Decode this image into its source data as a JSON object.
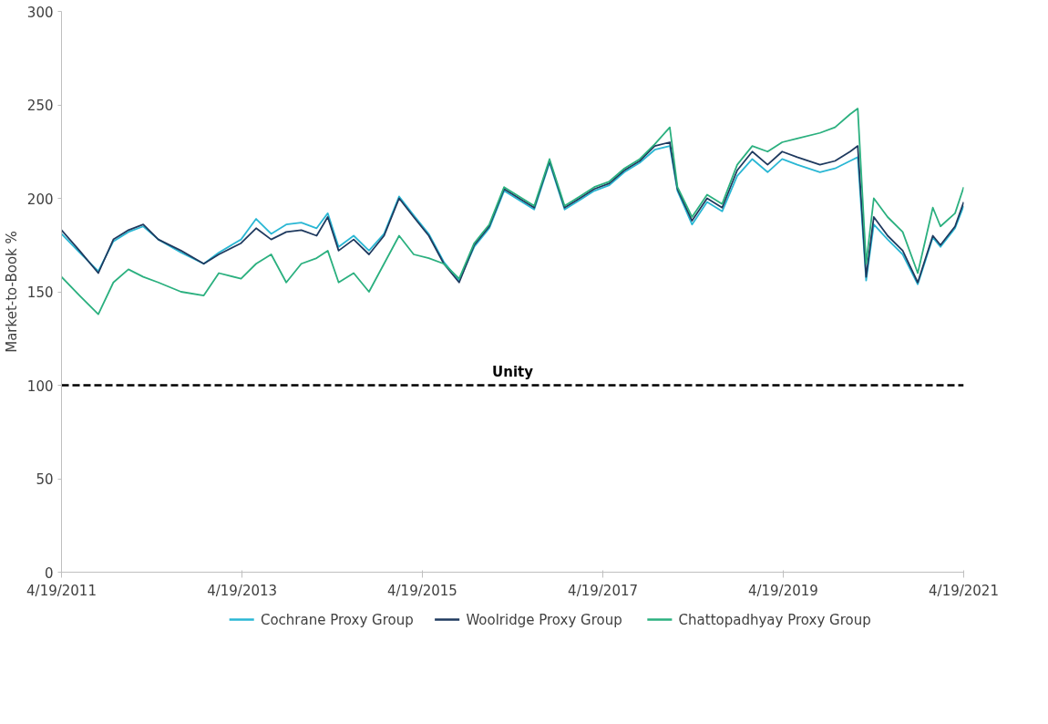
{
  "chart_data": {
    "type": "line",
    "ylabel": "Market-to-Book %",
    "x": [
      "2011-04-19",
      "2011-07-01",
      "2011-09-15",
      "2011-11-15",
      "2012-01-15",
      "2012-03-15",
      "2012-05-15",
      "2012-08-15",
      "2012-11-15",
      "2013-01-15",
      "2013-04-15",
      "2013-06-15",
      "2013-08-15",
      "2013-10-15",
      "2013-12-15",
      "2014-02-15",
      "2014-04-01",
      "2014-05-15",
      "2014-07-15",
      "2014-09-15",
      "2014-11-15",
      "2015-01-15",
      "2015-03-15",
      "2015-05-15",
      "2015-07-15",
      "2015-09-15",
      "2015-11-15",
      "2016-01-15",
      "2016-03-15",
      "2016-05-15",
      "2016-07-15",
      "2016-09-15",
      "2016-11-15",
      "2017-01-15",
      "2017-03-15",
      "2017-05-15",
      "2017-07-15",
      "2017-09-15",
      "2017-11-15",
      "2018-01-15",
      "2018-02-15",
      "2018-04-15",
      "2018-06-15",
      "2018-08-15",
      "2018-10-15",
      "2018-12-15",
      "2019-02-15",
      "2019-04-15",
      "2019-06-15",
      "2019-09-15",
      "2019-11-15",
      "2020-01-15",
      "2020-02-15",
      "2020-03-20",
      "2020-04-20",
      "2020-06-15",
      "2020-08-15",
      "2020-10-15",
      "2020-12-15",
      "2021-01-15",
      "2021-03-15",
      "2021-04-19"
    ],
    "series": [
      {
        "name": "Cochrane Proxy Group",
        "color": "#2ab7d4",
        "values": [
          181,
          171,
          161,
          177,
          182,
          185,
          178,
          171,
          165,
          171,
          178,
          189,
          181,
          186,
          187,
          184,
          192,
          174,
          180,
          172,
          181,
          201,
          191,
          181,
          166,
          156,
          174,
          184,
          204,
          199,
          194,
          219,
          194,
          199,
          204,
          207,
          214,
          219,
          226,
          228,
          204,
          186,
          198,
          193,
          212,
          221,
          214,
          221,
          218,
          214,
          216,
          220,
          222,
          156,
          186,
          178,
          170,
          154,
          179,
          174,
          184,
          196
        ]
      },
      {
        "name": "Woolridge Proxy Group",
        "color": "#1f3a5f",
        "values": [
          183,
          172,
          160,
          178,
          183,
          186,
          178,
          172,
          165,
          170,
          176,
          184,
          178,
          182,
          183,
          180,
          190,
          172,
          178,
          170,
          180,
          200,
          190,
          180,
          165,
          155,
          175,
          185,
          205,
          200,
          195,
          220,
          195,
          200,
          205,
          208,
          215,
          220,
          228,
          230,
          205,
          188,
          200,
          195,
          215,
          225,
          218,
          225,
          222,
          218,
          220,
          225,
          228,
          158,
          190,
          180,
          172,
          155,
          180,
          175,
          185,
          198
        ]
      },
      {
        "name": "Chattopadhyay Proxy Group",
        "color": "#2bb07f",
        "values": [
          158,
          148,
          138,
          155,
          162,
          158,
          155,
          150,
          148,
          160,
          157,
          165,
          170,
          155,
          165,
          168,
          172,
          155,
          160,
          150,
          165,
          180,
          170,
          168,
          165,
          157,
          176,
          186,
          206,
          201,
          196,
          221,
          196,
          201,
          206,
          209,
          216,
          221,
          229,
          238,
          206,
          190,
          202,
          197,
          218,
          228,
          225,
          230,
          232,
          235,
          238,
          245,
          248,
          165,
          200,
          190,
          182,
          160,
          195,
          185,
          192,
          206
        ]
      }
    ],
    "xlim": [
      "2011-04-19",
      "2021-04-19"
    ],
    "xticks": [
      {
        "value": "2011-04-19",
        "label": "4/19/2011"
      },
      {
        "value": "2013-04-19",
        "label": "4/19/2013"
      },
      {
        "value": "2015-04-19",
        "label": "4/19/2015"
      },
      {
        "value": "2017-04-19",
        "label": "4/19/2017"
      },
      {
        "value": "2019-04-19",
        "label": "4/19/2019"
      },
      {
        "value": "2021-04-19",
        "label": "4/19/2021"
      }
    ],
    "ylim": [
      0,
      300
    ],
    "yticks": [
      0,
      50,
      100,
      150,
      200,
      250,
      300
    ],
    "ref_lines": [
      {
        "axis": "y",
        "value": 100,
        "label": "Unity",
        "color": "#000000",
        "line_style": "dashed"
      }
    ],
    "grid": false,
    "legend": "bottom",
    "marker": "none",
    "line_style": "solid"
  }
}
